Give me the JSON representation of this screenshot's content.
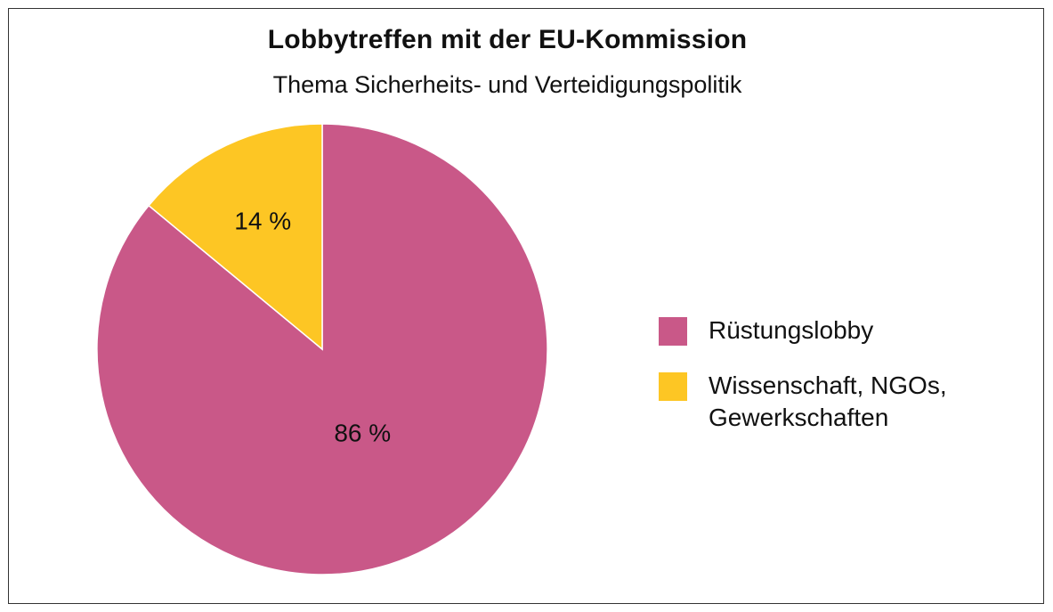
{
  "chart_data": {
    "type": "pie",
    "title": "Lobbytreffen mit der EU-Kommission",
    "subtitle": "Thema Sicherheits- und Verteidigungspolitik",
    "legend_position": "right",
    "slices": [
      {
        "label": "Rüstungslobby",
        "value": 86,
        "display": "86 %",
        "color": "#c95888"
      },
      {
        "label": "Wissenschaft, NGOs, Gewerkschaften",
        "value": 14,
        "display": "14 %",
        "color": "#fdc624"
      }
    ]
  }
}
